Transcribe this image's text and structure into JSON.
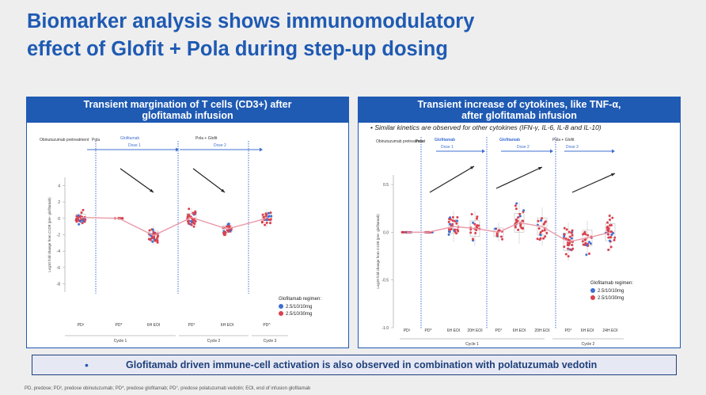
{
  "title_line1": "Biomarker analysis shows immunomodulatory",
  "title_line2": "effect of Glofit + Pola during step-up dosing",
  "colors": {
    "brand": "#1f5ab3",
    "blue": "#3f6fd1",
    "red": "#d9414e",
    "median_line": "#e89aa8"
  },
  "chart_data": [
    {
      "type": "scatter",
      "title_line1": "Transient margination of T cells (CD3+) after",
      "title_line2": "glofitamab infusion",
      "ylabel": "Log10 fold change from C1D8 (pre- glofitamab)",
      "ylim": [
        -9,
        5
      ],
      "yticks": [
        "4",
        "2",
        "0",
        "-2",
        "-4",
        "-6",
        "-8"
      ],
      "categories": [
        "PD²",
        "PD*",
        "6H EOI",
        "PD°",
        "6H EOI",
        "PD^"
      ],
      "median_trend": [
        0.1,
        0.0,
        -2.1,
        0.1,
        -1.3,
        0.0
      ],
      "cycles": [
        "Cycle 1",
        "Cycle 2",
        "Cycle 3"
      ],
      "phases": [
        "Obinutuzumab pretreatment",
        "Pola",
        "Glofitamab",
        "Dose 1",
        "Pola + Glofit",
        "Dose 2"
      ],
      "legend_title": "Glofitamab regimen:",
      "series": [
        {
          "name": "2.5/10/10mg",
          "color": "#3f6fd1"
        },
        {
          "name": "2.5/10/30mg",
          "color": "#d9414e"
        }
      ]
    },
    {
      "type": "scatter",
      "title_line1": "Transient increase of cytokines, like TNF-α,",
      "title_line2": "after glofitamab infusion",
      "note": "Similar kinetics are observed for other cytokines (IFN-γ, IL-6, IL-8 and IL-10)",
      "ylabel": "Log10 fold change from C1D8 (pre- glofitamab)",
      "ylim": [
        -1.0,
        0.6
      ],
      "yticks": [
        "0.5",
        "0.0",
        "-0.5",
        "-1.0"
      ],
      "categories": [
        "PD²",
        "PD*",
        "6H EOI",
        "20H EOI",
        "PD°",
        "6H EOI",
        "20H EOI",
        "PD°",
        "6H EOI",
        "24H EOI"
      ],
      "median_trend": [
        0.0,
        0.0,
        0.06,
        0.04,
        0.0,
        0.1,
        0.06,
        -0.1,
        -0.06,
        0.0
      ],
      "cycles": [
        "Cycle 1",
        "Cycle 2"
      ],
      "phases": [
        "Obinutuzumab pretreatment",
        "Pola",
        "Glofitamab",
        "Dose 1",
        "Glofitamab",
        "Dose 2",
        "Pola + Glofit",
        "Dose 3"
      ],
      "legend_title": "Glofitamab regimen:",
      "series": [
        {
          "name": "2.5/10/10mg",
          "color": "#3f6fd1"
        },
        {
          "name": "2.5/10/30mg",
          "color": "#d9414e"
        }
      ]
    }
  ],
  "banner_dot": "•",
  "banner_text": "Glofitamab driven immune-cell activation is also observed in combination with polatuzumab vedotin",
  "footnote": "PD, predose; PD², predose obinutuzumab; PD*, predose glofitamab; PD°, predose polatuzumab vedotin; EOI, end of infusion glofitamab"
}
